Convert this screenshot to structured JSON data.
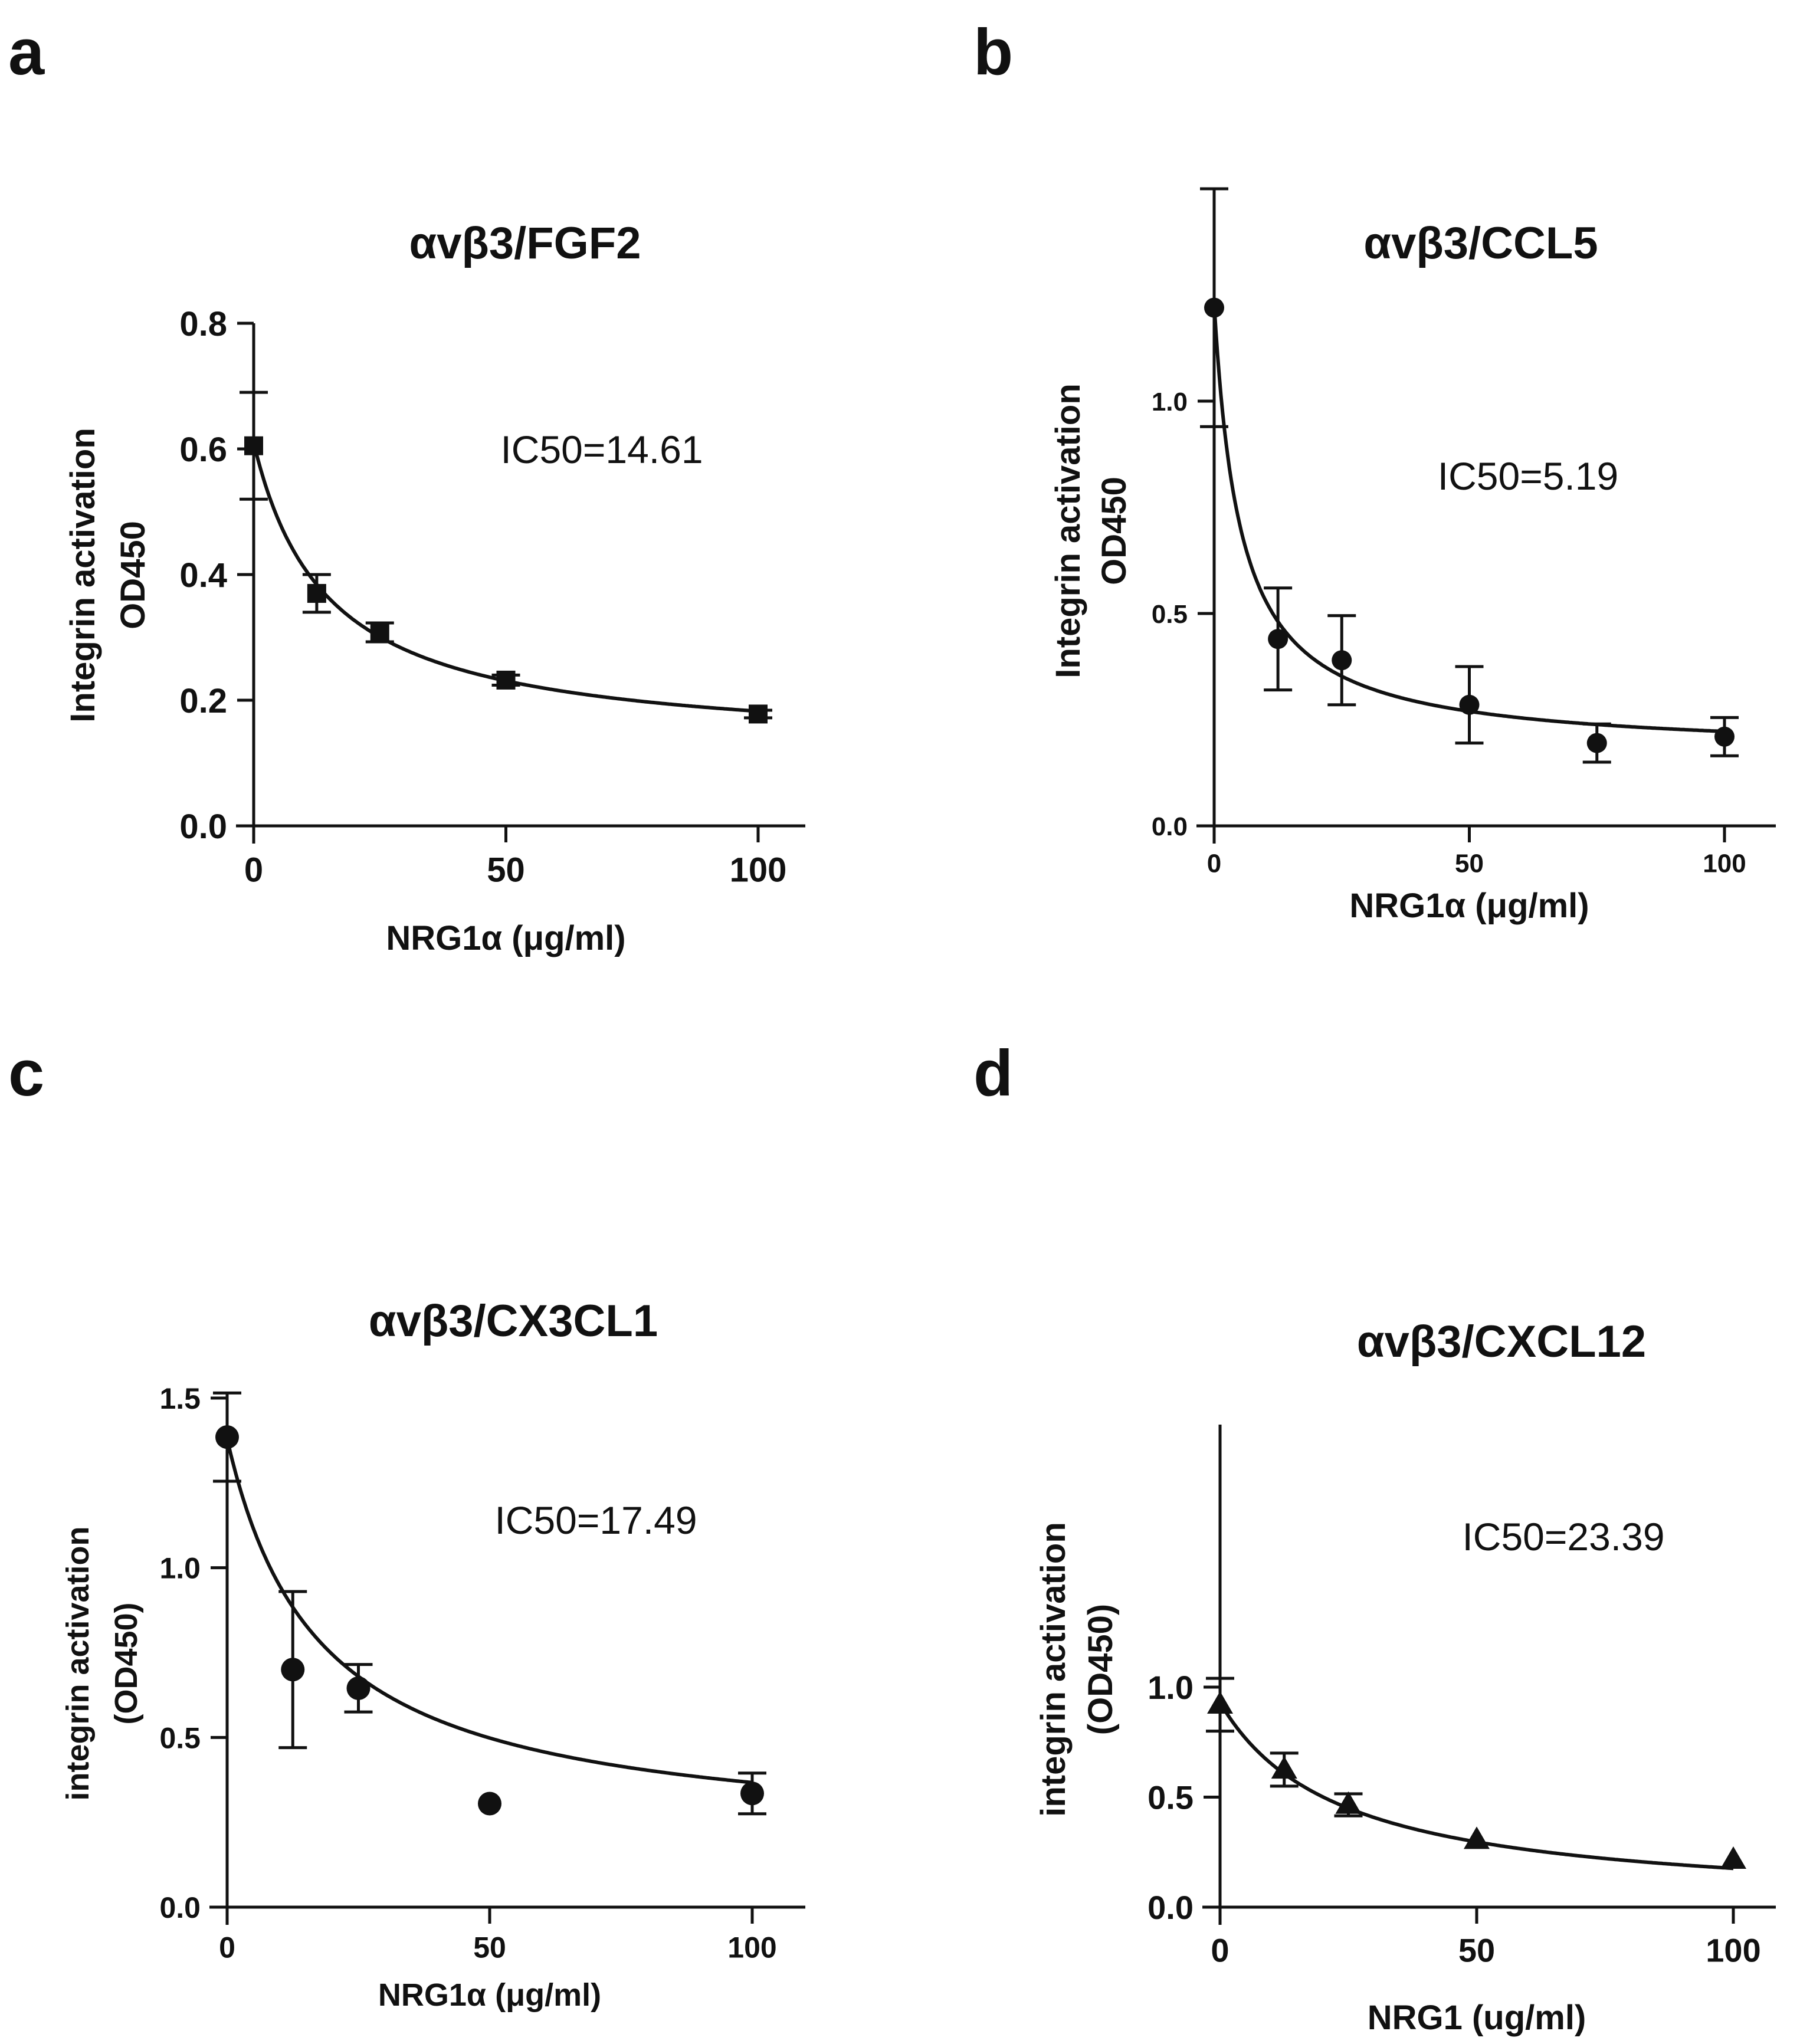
{
  "panels": [
    {
      "letter": "a"
    },
    {
      "letter": "b"
    },
    {
      "letter": "c"
    },
    {
      "letter": "d"
    }
  ],
  "chart_data": [
    {
      "panel": "a",
      "type": "scatter",
      "title": "αvβ3/FGF2",
      "xlabel": "NRG1α (μg/ml)",
      "ylabel": [
        "Integrin activation",
        "OD450"
      ],
      "annotation": "IC50=14.61",
      "xlim": [
        0,
        100
      ],
      "ylim": [
        0,
        0.8
      ],
      "xticks": [
        0,
        50,
        100
      ],
      "yticks": [
        0.0,
        0.2,
        0.4,
        0.6,
        0.8
      ],
      "xtick_labels": [
        "0",
        "50",
        "100"
      ],
      "ytick_labels": [
        "0.0",
        "0.2",
        "0.4",
        "0.6",
        "0.8"
      ],
      "marker": "square",
      "fit": {
        "top": 0.61,
        "bottom": 0.12,
        "ic50": 14.61
      },
      "series": [
        {
          "x": [
            0,
            12.5,
            25,
            50,
            100
          ],
          "y": [
            0.605,
            0.37,
            0.308,
            0.232,
            0.178
          ],
          "err": [
            0.085,
            0.03,
            0.015,
            0.008,
            0.006
          ]
        }
      ]
    },
    {
      "panel": "b",
      "type": "scatter",
      "title": "αvβ3/CCL5",
      "xlabel": "NRG1α (μg/ml)",
      "ylabel": [
        "Integrin activation",
        "OD450"
      ],
      "annotation": "IC50=5.19",
      "xlim": [
        0,
        100
      ],
      "ylim": [
        0,
        1.4
      ],
      "xticks": [
        0,
        50,
        100
      ],
      "yticks": [
        0.0,
        0.5,
        1.0
      ],
      "xtick_labels": [
        "0",
        "50",
        "100"
      ],
      "ytick_labels": [
        "0.0",
        "0.5",
        "1.0"
      ],
      "marker": "circle",
      "fit": {
        "top": 1.23,
        "bottom": 0.17,
        "ic50": 5.19
      },
      "series": [
        {
          "x": [
            0,
            12.5,
            25,
            50,
            75,
            100
          ],
          "y": [
            1.22,
            0.44,
            0.39,
            0.285,
            0.195,
            0.21
          ],
          "err": [
            0.28,
            0.12,
            0.105,
            0.09,
            0.045,
            0.045
          ]
        }
      ]
    },
    {
      "panel": "c",
      "type": "scatter",
      "title": "αvβ3/CX3CL1",
      "xlabel": "NRG1α (μg/ml)",
      "ylabel": [
        "integrin activation",
        "(OD450)"
      ],
      "annotation": "IC50=17.49",
      "xlim": [
        0,
        110
      ],
      "ylim": [
        0,
        1.5
      ],
      "xticks": [
        0,
        50,
        100
      ],
      "yticks": [
        0.0,
        0.5,
        1.0,
        1.5
      ],
      "xtick_labels": [
        "0",
        "50",
        "100"
      ],
      "ytick_labels": [
        "0.0",
        "0.5",
        "1.0",
        "1.5"
      ],
      "marker": "circle",
      "fit": {
        "top": 1.38,
        "bottom": 0.19,
        "ic50": 17.49
      },
      "series": [
        {
          "x": [
            0,
            12.5,
            25,
            50,
            100
          ],
          "y": [
            1.385,
            0.7,
            0.645,
            0.305,
            0.335
          ],
          "err": [
            0.13,
            0.23,
            0.07,
            0.0,
            0.06
          ]
        }
      ]
    },
    {
      "panel": "d",
      "type": "scatter",
      "title": "αvβ3/CXCL12",
      "xlabel": "NRG1 (ug/ml)",
      "ylabel": [
        "integrin activation",
        "(OD450)"
      ],
      "annotation": "IC50=23.39",
      "xlim": [
        0,
        100
      ],
      "ylim": [
        0,
        1.2
      ],
      "xticks": [
        0,
        50,
        100
      ],
      "yticks": [
        0.0,
        0.5,
        1.0
      ],
      "xtick_labels": [
        "0",
        "50",
        "100"
      ],
      "ytick_labels": [
        "0.0",
        "0.5",
        "1.0"
      ],
      "marker": "triangle",
      "fit": {
        "top": 0.93,
        "bottom": 0.0,
        "ic50": 23.39
      },
      "series": [
        {
          "x": [
            0,
            12.5,
            25,
            50,
            100
          ],
          "y": [
            0.92,
            0.625,
            0.465,
            0.305,
            0.215
          ],
          "err": [
            0.12,
            0.075,
            0.05,
            0.0,
            0.0
          ]
        }
      ]
    }
  ]
}
